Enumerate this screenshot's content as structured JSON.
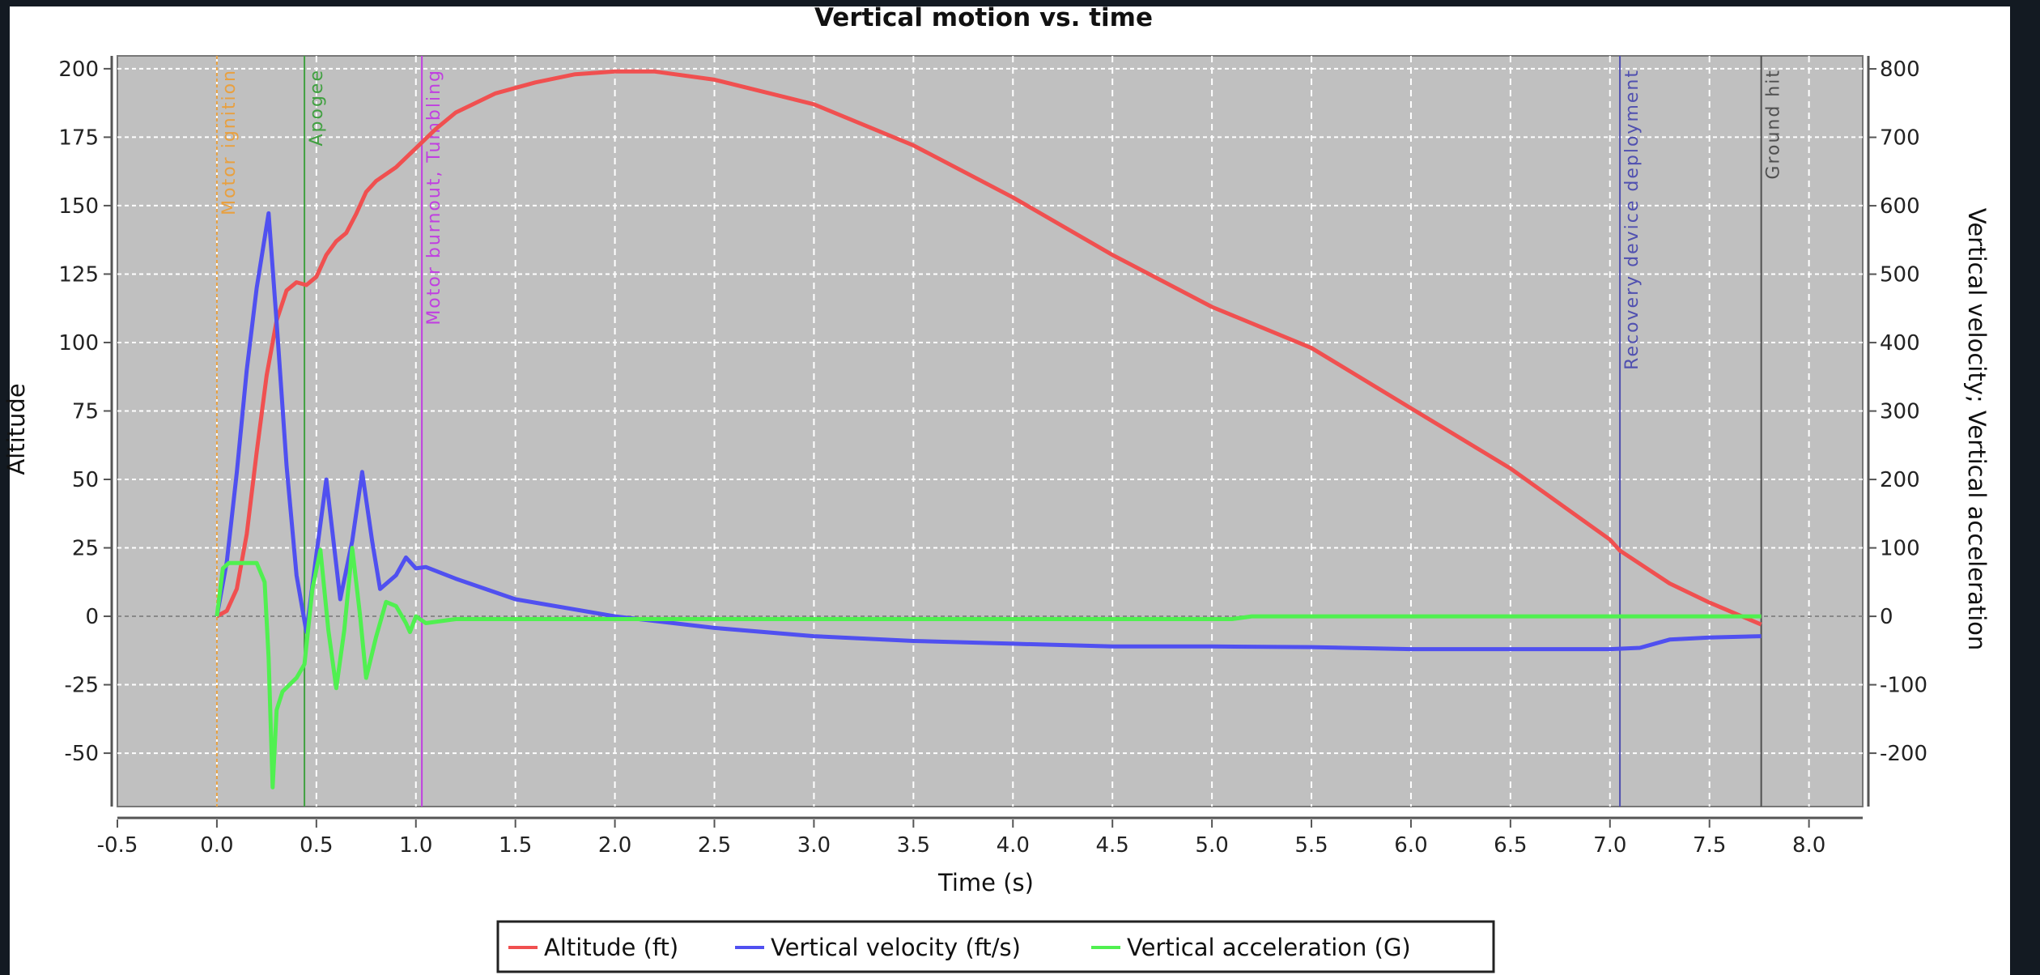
{
  "chart_data": {
    "type": "line",
    "title": "Vertical motion vs. time",
    "xlabel": "Time (s)",
    "ylabel_left": "Altitude",
    "ylabel_right": "Vertical velocity; Vertical acceleration",
    "xlim": [
      -0.5,
      8.27
    ],
    "ylim_left": [
      -69.5,
      204.7
    ],
    "ylim_right": [
      -278,
      819
    ],
    "x_ticks": [
      "-0.5",
      "0.0",
      "0.5",
      "1.0",
      "1.5",
      "2.0",
      "2.5",
      "3.0",
      "3.5",
      "4.0",
      "4.5",
      "5.0",
      "5.5",
      "6.0",
      "6.5",
      "7.0",
      "7.5",
      "8.0"
    ],
    "y_left_ticks": [
      "200",
      "175",
      "150",
      "125",
      "100",
      "75",
      "50",
      "25",
      "0",
      "-25",
      "-50"
    ],
    "y_right_ticks": [
      "800",
      "700",
      "600",
      "500",
      "400",
      "300",
      "200",
      "100",
      "0",
      "-100",
      "-200"
    ],
    "grid": true,
    "plot_background": "#c0c0c0",
    "legend_position": "bottom",
    "events": [
      {
        "label": "Motor ignition",
        "x": 0.0,
        "color": "#e8a040",
        "style": "dashed"
      },
      {
        "label": "Apogee",
        "x": 0.44,
        "color": "#40a040",
        "style": "solid"
      },
      {
        "label": "Motor burnout, Tumbling",
        "x": 1.03,
        "color": "#c040e0",
        "style": "solid"
      },
      {
        "label": "Recovery device deployment",
        "x": 7.05,
        "color": "#5050b0",
        "style": "solid"
      },
      {
        "label": "Ground hit",
        "x": 7.76,
        "color": "#505050",
        "style": "solid"
      }
    ],
    "series": [
      {
        "name": "Altitude (ft)",
        "axis": "left",
        "color": "#f05050",
        "x": [
          0,
          0.05,
          0.1,
          0.15,
          0.2,
          0.25,
          0.3,
          0.35,
          0.4,
          0.45,
          0.5,
          0.55,
          0.6,
          0.65,
          0.7,
          0.75,
          0.8,
          0.9,
          1.0,
          1.1,
          1.2,
          1.4,
          1.6,
          1.8,
          2.0,
          2.2,
          2.5,
          3.0,
          3.5,
          4.0,
          4.5,
          5.0,
          5.5,
          6.0,
          6.5,
          7.0,
          7.05,
          7.3,
          7.5,
          7.76
        ],
        "y": [
          0,
          2,
          10,
          30,
          60,
          88,
          108,
          119,
          122,
          121,
          124,
          132,
          137,
          140,
          147,
          155,
          159,
          164,
          171,
          178,
          184,
          191,
          195,
          198,
          199,
          199,
          196,
          187,
          172,
          153,
          132,
          113,
          98,
          76,
          54,
          28,
          24,
          12,
          5,
          -3
        ]
      },
      {
        "name": "Vertical velocity (ft/s)",
        "axis": "right",
        "color": "#5050f0",
        "x": [
          0,
          0.05,
          0.1,
          0.15,
          0.2,
          0.26,
          0.3,
          0.35,
          0.4,
          0.45,
          0.5,
          0.55,
          0.62,
          0.68,
          0.73,
          0.78,
          0.82,
          0.9,
          0.95,
          1.0,
          1.05,
          1.2,
          1.5,
          2.0,
          2.5,
          3.0,
          3.5,
          4.0,
          4.5,
          5.0,
          5.5,
          6.0,
          7.0,
          7.15,
          7.3,
          7.5,
          7.76
        ],
        "y": [
          0,
          80,
          210,
          360,
          480,
          589,
          430,
          220,
          60,
          -23,
          90,
          200,
          25,
          110,
          211,
          110,
          40,
          60,
          86,
          70,
          72,
          55,
          25,
          0,
          -17,
          -29,
          -36,
          -40,
          -44,
          -44,
          -45,
          -48,
          -48,
          -46,
          -34,
          -31,
          -29
        ]
      },
      {
        "name": "Vertical acceleration (G)",
        "axis": "right",
        "color": "#50f050",
        "x": [
          0,
          0.03,
          0.06,
          0.2,
          0.24,
          0.26,
          0.28,
          0.3,
          0.33,
          0.4,
          0.44,
          0.48,
          0.52,
          0.56,
          0.6,
          0.64,
          0.68,
          0.72,
          0.75,
          0.8,
          0.85,
          0.9,
          0.95,
          0.97,
          1.0,
          1.05,
          1.2,
          5.1,
          5.2,
          7.76
        ],
        "y": [
          0,
          70,
          78,
          78,
          50,
          -60,
          -250,
          -137,
          -110,
          -90,
          -70,
          40,
          97,
          -20,
          -105,
          -20,
          100,
          0,
          -90,
          -30,
          21,
          15,
          -10,
          -23,
          0,
          -10,
          -4,
          -4,
          0,
          0
        ]
      }
    ]
  }
}
